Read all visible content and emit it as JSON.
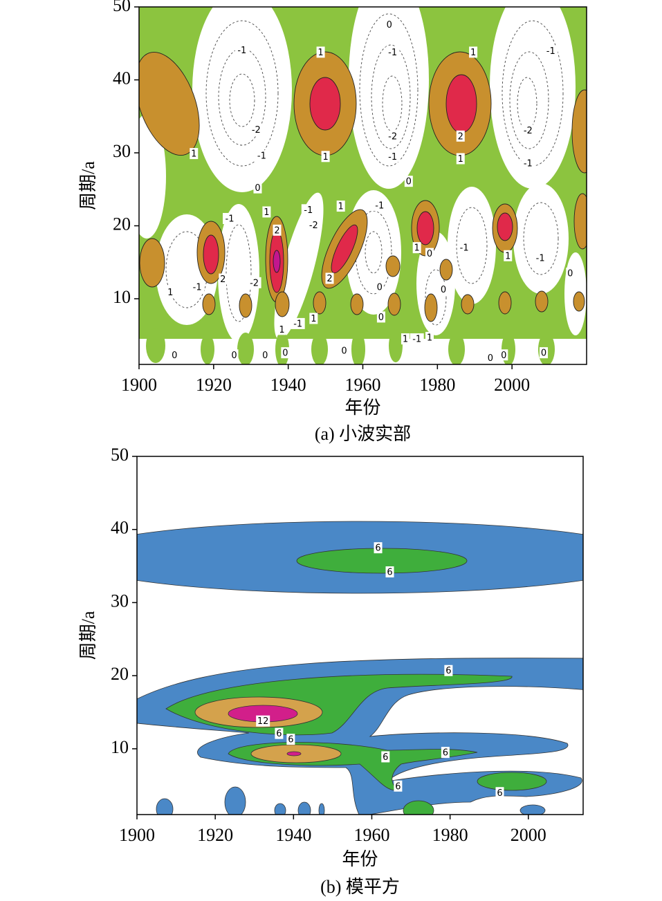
{
  "chart_data": [
    {
      "type": "contour",
      "title": "(a) 小波实部",
      "xlabel": "年份",
      "ylabel": "周期/a",
      "xlim": [
        1900,
        2020
      ],
      "ylim": [
        1,
        50
      ],
      "xticks": [
        1900,
        1920,
        1940,
        1960,
        1980,
        2000
      ],
      "yticks": [
        10,
        20,
        30,
        40,
        50
      ],
      "contour_labels": [
        {
          "x": 1927.6,
          "y": 44.1,
          "level": -1
        },
        {
          "x": 1931.4,
          "y": 33.2,
          "level": -2
        },
        {
          "x": 1932.9,
          "y": 29.6,
          "level": -1
        },
        {
          "x": 1914.7,
          "y": 29.9,
          "level": 1
        },
        {
          "x": 1948.7,
          "y": 43.8,
          "level": 1
        },
        {
          "x": 1950,
          "y": 29.5,
          "level": 1
        },
        {
          "x": 1967.1,
          "y": 47.6,
          "level": 0
        },
        {
          "x": 1968,
          "y": 43.8,
          "level": -1
        },
        {
          "x": 1968,
          "y": 32.3,
          "level": -2
        },
        {
          "x": 1968,
          "y": 29.5,
          "level": -1
        },
        {
          "x": 1989.6,
          "y": 43.8,
          "level": 1
        },
        {
          "x": 1986.2,
          "y": 32.3,
          "level": 2
        },
        {
          "x": 1986.2,
          "y": 29.2,
          "level": 1
        },
        {
          "x": 2010.4,
          "y": 44,
          "level": -1
        },
        {
          "x": 2004.3,
          "y": 33.1,
          "level": -2
        },
        {
          "x": 2004.3,
          "y": 28.6,
          "level": -1
        },
        {
          "x": 1931.8,
          "y": 25.2,
          "level": 0
        },
        {
          "x": 1934.2,
          "y": 21.9,
          "level": 1
        },
        {
          "x": 1937,
          "y": 19.4,
          "level": 2
        },
        {
          "x": 1924.3,
          "y": 21,
          "level": -1
        },
        {
          "x": 1945.4,
          "y": 22.2,
          "level": -1
        },
        {
          "x": 1946.8,
          "y": 20.1,
          "level": -2
        },
        {
          "x": 1954.1,
          "y": 22.7,
          "level": 1
        },
        {
          "x": 1964.5,
          "y": 22.8,
          "level": -1
        },
        {
          "x": 1972.3,
          "y": 26.1,
          "level": 0
        },
        {
          "x": 1974.5,
          "y": 17,
          "level": 1
        },
        {
          "x": 1977.9,
          "y": 16.2,
          "level": 0
        },
        {
          "x": 1987.2,
          "y": 17,
          "level": -1
        },
        {
          "x": 1998.9,
          "y": 15.9,
          "level": 1
        },
        {
          "x": 2007.6,
          "y": 15.6,
          "level": -1
        },
        {
          "x": 2015.6,
          "y": 13.5,
          "level": 0
        },
        {
          "x": 1922.5,
          "y": 12.7,
          "level": 2
        },
        {
          "x": 1915.6,
          "y": 11.6,
          "level": -1
        },
        {
          "x": 1908.4,
          "y": 10.9,
          "level": 1
        },
        {
          "x": 1930.9,
          "y": 12.2,
          "level": -2
        },
        {
          "x": 1951.1,
          "y": 12.8,
          "level": 2
        },
        {
          "x": 1964.5,
          "y": 11.6,
          "level": 0
        },
        {
          "x": 1981.6,
          "y": 11.3,
          "level": 0
        },
        {
          "x": 1938.3,
          "y": 5.8,
          "level": 1
        },
        {
          "x": 1942.6,
          "y": 6.6,
          "level": -1
        },
        {
          "x": 1946.8,
          "y": 7.3,
          "level": 1
        },
        {
          "x": 1964.9,
          "y": 7.5,
          "level": 0
        },
        {
          "x": 1971.4,
          "y": 4.5,
          "level": 1
        },
        {
          "x": 1974.5,
          "y": 4.5,
          "level": -1
        },
        {
          "x": 1977.9,
          "y": 4.7,
          "level": 1
        },
        {
          "x": 1909.5,
          "y": 2.3,
          "level": 0
        },
        {
          "x": 1925.5,
          "y": 2.3,
          "level": 0
        },
        {
          "x": 1933.8,
          "y": 2.3,
          "level": 0
        },
        {
          "x": 1939.2,
          "y": 2.6,
          "level": 0
        },
        {
          "x": 1955,
          "y": 2.9,
          "level": 0
        },
        {
          "x": 1994.2,
          "y": 1.9,
          "level": 0
        },
        {
          "x": 1997.8,
          "y": 2.3,
          "level": 0
        },
        {
          "x": 2008.5,
          "y": 2.6,
          "level": 0
        }
      ]
    },
    {
      "type": "contour",
      "title": "(b) 模平方",
      "xlabel": "年份",
      "ylabel": "周期/a",
      "xlim": [
        1900,
        2014
      ],
      "ylim": [
        1,
        50
      ],
      "xticks": [
        1900,
        1920,
        1940,
        1960,
        1980,
        2000
      ],
      "yticks": [
        10,
        20,
        30,
        40,
        50
      ],
      "contour_labels": [
        {
          "x": 1961.6,
          "y": 37.5,
          "level": 6
        },
        {
          "x": 1964.6,
          "y": 34.2,
          "level": 6
        },
        {
          "x": 1979.6,
          "y": 20.7,
          "level": 6
        },
        {
          "x": 1932.2,
          "y": 13.8,
          "level": 12
        },
        {
          "x": 1936.3,
          "y": 12.1,
          "level": 6
        },
        {
          "x": 1939.3,
          "y": 11.3,
          "level": 6
        },
        {
          "x": 1963.5,
          "y": 8.9,
          "level": 6
        },
        {
          "x": 1978.8,
          "y": 9.5,
          "level": 6
        },
        {
          "x": 1966.7,
          "y": 4.9,
          "level": 6
        },
        {
          "x": 1992.7,
          "y": 4,
          "level": 6
        }
      ]
    }
  ]
}
